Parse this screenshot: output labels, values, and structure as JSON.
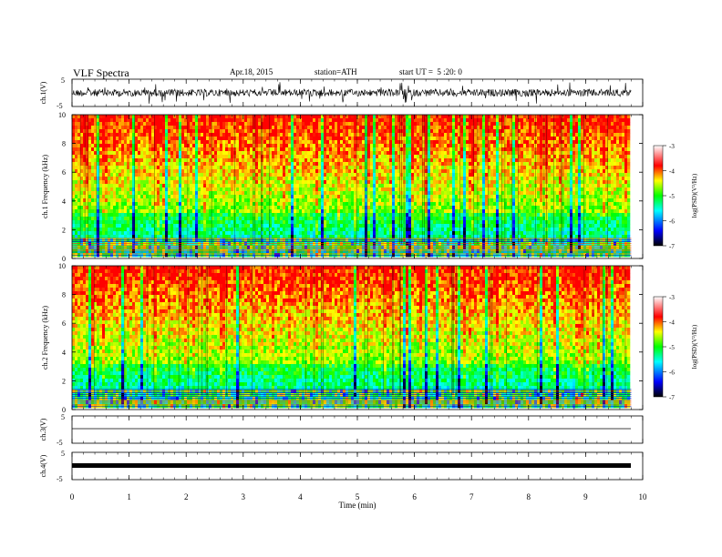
{
  "header": {
    "title": "VLF Spectra",
    "date": "Apr.18, 2015",
    "station": "station=ATH",
    "start": "start UT =  5 :20: 0"
  },
  "chart_data": [
    {
      "type": "line",
      "panel": "ch1-waveform",
      "ylabel": "ch.1(V)",
      "ylim": [
        -5,
        5
      ],
      "yticks": [
        "5",
        "-5"
      ],
      "description_series": "dense noisy waveform, amplitude about ±1 V with spikes to ±3 V"
    },
    {
      "type": "heatmap",
      "panel": "ch1-spectrogram",
      "ylabel": "ch.1 Frequency (kHz)",
      "ylim": [
        0,
        10
      ],
      "yticks": [
        "0",
        "2",
        "4",
        "6",
        "8",
        "10"
      ],
      "colorbar": {
        "label": "log(PSD)(V²/Hz)",
        "range": [
          -7,
          -3
        ],
        "ticks": [
          "-3",
          "-4",
          "-5",
          "-6",
          "-7"
        ]
      }
    },
    {
      "type": "heatmap",
      "panel": "ch2-spectrogram",
      "ylabel": "ch.2 Frequency (kHz)",
      "ylim": [
        0,
        10
      ],
      "yticks": [
        "0",
        "2",
        "4",
        "6",
        "8",
        "10"
      ],
      "colorbar": {
        "label": "log(PSD)(V²/Hz)",
        "range": [
          -7,
          -3
        ],
        "ticks": [
          "-3",
          "-4",
          "-5",
          "-6",
          "-7"
        ]
      }
    },
    {
      "type": "line",
      "panel": "ch3-waveform",
      "ylabel": "ch.3(V)",
      "ylim": [
        -5,
        5
      ],
      "yticks": [
        "5",
        "-5"
      ]
    },
    {
      "type": "line",
      "panel": "ch4-waveform",
      "ylabel": "ch.4(V)",
      "ylim": [
        -5,
        5
      ],
      "yticks": [
        "5",
        "-5"
      ]
    }
  ],
  "xaxis": {
    "label": "Time (min)",
    "range": [
      0,
      10
    ],
    "data_end": 9.8,
    "ticks": [
      "0",
      "1",
      "2",
      "3",
      "4",
      "5",
      "6",
      "7",
      "8",
      "9",
      "10"
    ]
  },
  "colors": {
    "colormap": [
      "#000000",
      "#0000ff",
      "#00ffff",
      "#00ff00",
      "#ffff00",
      "#ff0000",
      "#ffffff"
    ]
  }
}
